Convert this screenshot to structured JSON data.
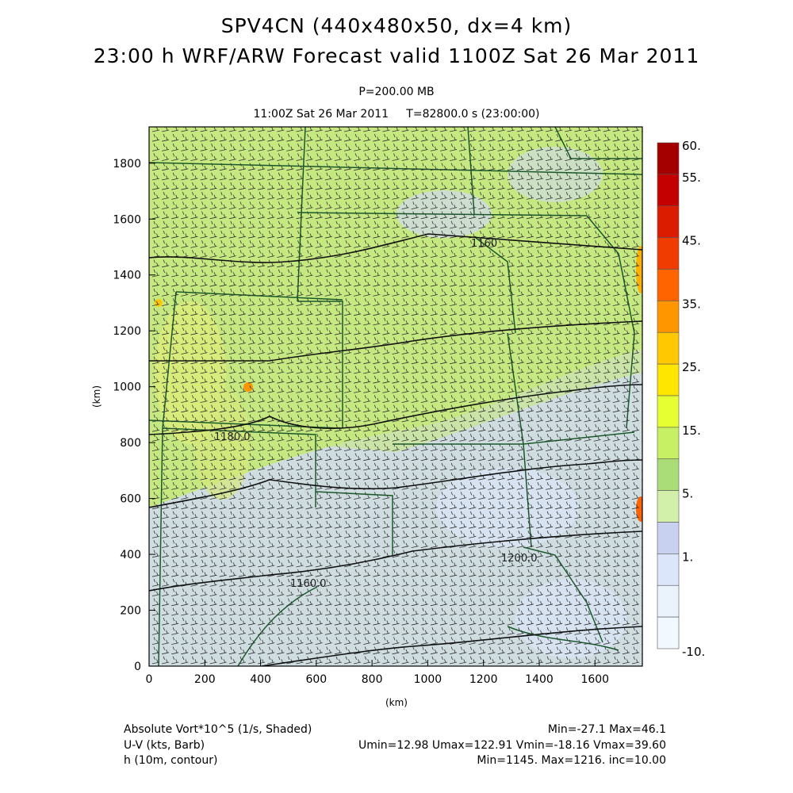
{
  "header": {
    "title_line1": "SPV4CN (440x480x50, dx=4 km)",
    "title_line2": "23:00 h WRF/ARW Forecast valid 1100Z Sat 26 Mar 2011",
    "level": "P=200.00 MB",
    "time_info": "11:00Z Sat 26 Mar 2011     T=82800.0 s (23:00:00)"
  },
  "axes": {
    "x_label": "(km)",
    "y_label": "(km)",
    "x_ticks": [
      "0",
      "200",
      "400",
      "600",
      "800",
      "1000",
      "1200",
      "1400",
      "1600"
    ],
    "y_ticks": [
      "0",
      "200",
      "400",
      "600",
      "800",
      "1000",
      "1200",
      "1400",
      "1600",
      "1800"
    ]
  },
  "colorbar": {
    "labels": [
      "60.",
      "55.",
      "45.",
      "35.",
      "25.",
      "15.",
      "5.",
      "1.",
      "-10."
    ],
    "colors": [
      "#a50000",
      "#c40000",
      "#dc1c00",
      "#f03c00",
      "#ff6400",
      "#ff9600",
      "#ffc800",
      "#ffe600",
      "#e6ff32",
      "#c8f064",
      "#aadc78",
      "#d2f0aa",
      "#c8d2f0",
      "#dce6fa",
      "#eaf2fc",
      "#f2f8ff"
    ]
  },
  "contours": {
    "labels": [
      "1160",
      "1180.0",
      "1200.0",
      "1160.0"
    ]
  },
  "footer": {
    "field1_name": "Absolute Vort*10^5 (1/s, Shaded)",
    "field1_stats": "Min=-27.1 Max=46.1",
    "field2_name": "U-V (kts, Barb)",
    "field2_stats": "Umin=12.98 Umax=122.91 Vmin=-18.16 Vmax=39.60",
    "field3_name": "h (10m, contour)",
    "field3_stats": "Min=1145. Max=1216. inc=10.00"
  },
  "colors": {
    "field_green": "#c6e880",
    "field_blue": "#d0daf2",
    "border": "#1a5a2a",
    "contour": "#111111"
  }
}
